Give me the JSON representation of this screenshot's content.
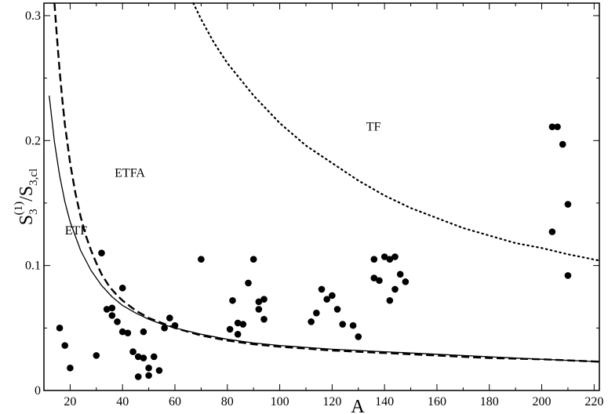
{
  "chart_data": {
    "type": "scatter",
    "xlabel": "A",
    "ylabel": {
      "base": "S",
      "sub1": "3",
      "sup1": "(1)",
      "sep": "/S",
      "sub2": "3,cl"
    },
    "xlim": [
      10,
      222
    ],
    "ylim": [
      0,
      0.31
    ],
    "xticks": [
      20,
      40,
      60,
      80,
      100,
      120,
      140,
      160,
      180,
      200,
      220
    ],
    "yticks": [
      0,
      0.1,
      0.2,
      0.3
    ],
    "xtick_labels": [
      "20",
      "40",
      "60",
      "80",
      "100",
      "120",
      "140",
      "160",
      "180",
      "200",
      "220"
    ],
    "ytick_labels": [
      "0",
      "0.1",
      "0.2",
      "0.3"
    ],
    "grid": false,
    "legend": "none",
    "series": [
      {
        "style": "markers",
        "points": [
          [
            16,
            0.05
          ],
          [
            18,
            0.036
          ],
          [
            20,
            0.018
          ],
          [
            30,
            0.028
          ],
          [
            32,
            0.11
          ],
          [
            34,
            0.065
          ],
          [
            36,
            0.066
          ],
          [
            36,
            0.06
          ],
          [
            38,
            0.055
          ],
          [
            40,
            0.082
          ],
          [
            40,
            0.047
          ],
          [
            42,
            0.046
          ],
          [
            44,
            0.031
          ],
          [
            46,
            0.027
          ],
          [
            46,
            0.011
          ],
          [
            48,
            0.047
          ],
          [
            48,
            0.026
          ],
          [
            50,
            0.018
          ],
          [
            50,
            0.012
          ],
          [
            52,
            0.027
          ],
          [
            54,
            0.016
          ],
          [
            56,
            0.05
          ],
          [
            58,
            0.058
          ],
          [
            60,
            0.052
          ],
          [
            70,
            0.105
          ],
          [
            81,
            0.049
          ],
          [
            82,
            0.072
          ],
          [
            84,
            0.054
          ],
          [
            84,
            0.045
          ],
          [
            86,
            0.053
          ],
          [
            88,
            0.086
          ],
          [
            90,
            0.105
          ],
          [
            92,
            0.071
          ],
          [
            92,
            0.065
          ],
          [
            94,
            0.073
          ],
          [
            94,
            0.057
          ],
          [
            112,
            0.055
          ],
          [
            114,
            0.062
          ],
          [
            116,
            0.081
          ],
          [
            118,
            0.073
          ],
          [
            120,
            0.076
          ],
          [
            122,
            0.065
          ],
          [
            124,
            0.053
          ],
          [
            128,
            0.052
          ],
          [
            130,
            0.043
          ],
          [
            136,
            0.105
          ],
          [
            136,
            0.09
          ],
          [
            138,
            0.088
          ],
          [
            140,
            0.107
          ],
          [
            142,
            0.105
          ],
          [
            142,
            0.072
          ],
          [
            144,
            0.107
          ],
          [
            144,
            0.081
          ],
          [
            146,
            0.093
          ],
          [
            148,
            0.087
          ],
          [
            204,
            0.211
          ],
          [
            204,
            0.127
          ],
          [
            206,
            0.211
          ],
          [
            208,
            0.197
          ],
          [
            210,
            0.149
          ],
          [
            210,
            0.092
          ]
        ]
      },
      {
        "name": "ETF",
        "style": "solid",
        "x": [
          12,
          14,
          16,
          18,
          20,
          24,
          28,
          32,
          36,
          40,
          45,
          50,
          55,
          60,
          70,
          80,
          90,
          100,
          120,
          140,
          160,
          180,
          200,
          222
        ],
        "y": [
          0.236,
          0.199,
          0.172,
          0.151,
          0.135,
          0.112,
          0.096,
          0.084,
          0.075,
          0.068,
          0.062,
          0.057,
          0.053,
          0.05,
          0.045,
          0.041,
          0.038,
          0.036,
          0.033,
          0.031,
          0.029,
          0.027,
          0.025,
          0.023
        ]
      },
      {
        "name": "ETFA",
        "style": "dashed",
        "x": [
          14,
          15,
          16,
          17,
          18,
          20,
          22,
          24,
          26,
          28,
          30,
          32,
          35,
          38,
          40,
          45,
          50,
          55,
          60,
          70,
          80,
          90,
          100,
          120,
          140,
          160,
          180,
          200,
          222
        ],
        "y": [
          0.31,
          0.282,
          0.256,
          0.233,
          0.213,
          0.182,
          0.158,
          0.139,
          0.124,
          0.112,
          0.102,
          0.093,
          0.083,
          0.076,
          0.072,
          0.064,
          0.058,
          0.054,
          0.05,
          0.044,
          0.04,
          0.037,
          0.035,
          0.032,
          0.03,
          0.028,
          0.026,
          0.025,
          0.023
        ]
      },
      {
        "name": "TF",
        "style": "dotted",
        "x": [
          67,
          70,
          75,
          80,
          90,
          100,
          110,
          120,
          130,
          140,
          150,
          160,
          170,
          180,
          190,
          200,
          210,
          222
        ],
        "y": [
          0.31,
          0.297,
          0.278,
          0.262,
          0.236,
          0.214,
          0.196,
          0.182,
          0.168,
          0.156,
          0.146,
          0.138,
          0.13,
          0.124,
          0.118,
          0.114,
          0.109,
          0.104
        ]
      }
    ],
    "annotations": [
      {
        "text": "TF",
        "x": 133,
        "y": 0.208
      },
      {
        "text": "ETFA",
        "x": 37,
        "y": 0.171
      },
      {
        "text": "ETF",
        "x": 18,
        "y": 0.125
      }
    ]
  }
}
